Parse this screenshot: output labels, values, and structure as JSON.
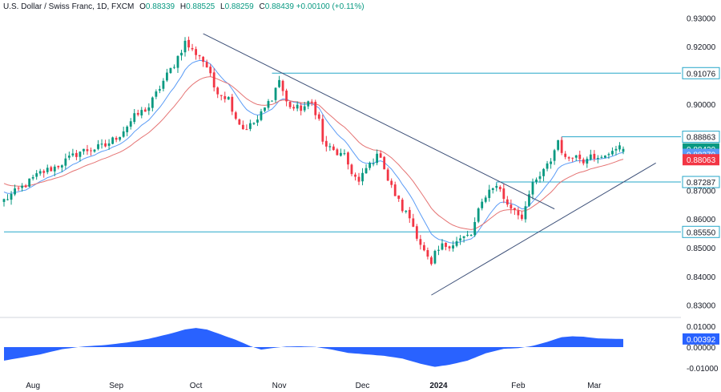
{
  "header": {
    "symbol": "U.S. Dollar / Swiss Franc, 1D, FXCM",
    "open_label": "O",
    "open": "0.88339",
    "high_label": "H",
    "high": "0.88525",
    "low_label": "L",
    "low": "0.88259",
    "close_label": "C",
    "close": "0.88439",
    "change": "+0.00100 (+0.11%)"
  },
  "colors": {
    "up": "#089981",
    "down": "#f23645",
    "ema_fast": "#5b9cf6",
    "ema_slow": "#e57373",
    "level": "#26a7c9",
    "trend": "#3e5179",
    "histogram": "#2962ff",
    "axis_text": "#131722"
  },
  "chart_data": [
    {
      "type": "candlestick",
      "ylim": [
        0.826,
        0.934
      ],
      "y_ticks": [
        "0.93000",
        "0.92000",
        "0.91076",
        "0.90000",
        "0.88863",
        "0.87287",
        "0.87000",
        "0.86000",
        "0.85550",
        "0.85000",
        "0.84000",
        "0.83000"
      ],
      "x_ticks": [
        "Aug",
        "Sep",
        "Oct",
        "Nov",
        "Dec",
        "2024",
        "Feb",
        "Mar"
      ],
      "x_tick_index": [
        8,
        31,
        53,
        76,
        99,
        120,
        142,
        163
      ],
      "anchors": [
        [
          0,
          0.8665
        ],
        [
          6,
          0.872
        ],
        [
          10,
          0.876
        ],
        [
          14,
          0.878
        ],
        [
          18,
          0.881
        ],
        [
          21,
          0.8835
        ],
        [
          25,
          0.8845
        ],
        [
          28,
          0.8855
        ],
        [
          32,
          0.8895
        ],
        [
          36,
          0.8955
        ],
        [
          40,
          0.899
        ],
        [
          44,
          0.908
        ],
        [
          47,
          0.914
        ],
        [
          50,
          0.9215
        ],
        [
          52,
          0.9185
        ],
        [
          54,
          0.917
        ],
        [
          56,
          0.913
        ],
        [
          58,
          0.906
        ],
        [
          60,
          0.9035
        ],
        [
          62,
          0.902
        ],
        [
          64,
          0.8955
        ],
        [
          66,
          0.8915
        ],
        [
          68,
          0.8925
        ],
        [
          70,
          0.8945
        ],
        [
          72,
          0.8985
        ],
        [
          74,
          0.9025
        ],
        [
          76,
          0.9085
        ],
        [
          78,
          0.9005
        ],
        [
          80,
          0.8985
        ],
        [
          82,
          0.8985
        ],
        [
          85,
          0.9005
        ],
        [
          87,
          0.8945
        ],
        [
          88,
          0.8865
        ],
        [
          91,
          0.8835
        ],
        [
          94,
          0.8815
        ],
        [
          96,
          0.8765
        ],
        [
          98,
          0.8725
        ],
        [
          100,
          0.8775
        ],
        [
          102,
          0.8805
        ],
        [
          104,
          0.8825
        ],
        [
          106,
          0.8735
        ],
        [
          108,
          0.8685
        ],
        [
          110,
          0.8635
        ],
        [
          112,
          0.8605
        ],
        [
          114,
          0.8545
        ],
        [
          116,
          0.8485
        ],
        [
          118,
          0.8435
        ],
        [
          119,
          0.8475
        ],
        [
          121,
          0.8505
        ],
        [
          124,
          0.8515
        ],
        [
          127,
          0.8535
        ],
        [
          129,
          0.8545
        ],
        [
          131,
          0.8625
        ],
        [
          133,
          0.8685
        ],
        [
          135,
          0.8715
        ],
        [
          137,
          0.8705
        ],
        [
          139,
          0.8645
        ],
        [
          141,
          0.8635
        ],
        [
          143,
          0.8605
        ],
        [
          144,
          0.8655
        ],
        [
          146,
          0.8715
        ],
        [
          149,
          0.8765
        ],
        [
          151,
          0.8805
        ],
        [
          153,
          0.8875
        ],
        [
          155,
          0.8805
        ],
        [
          157,
          0.8825
        ],
        [
          160,
          0.8805
        ],
        [
          162,
          0.8835
        ],
        [
          164,
          0.8805
        ],
        [
          166,
          0.8815
        ],
        [
          168,
          0.8845
        ],
        [
          171,
          0.8844
        ]
      ],
      "candles": {
        "count": 172,
        "noise": 0.0014,
        "last": {
          "open": 0.88339,
          "high": 0.88525,
          "low": 0.88259,
          "close": 0.88439
        }
      },
      "moving_averages": [
        {
          "kind": "ema",
          "period": 10,
          "color": "#5b9cf6"
        },
        {
          "kind": "ema",
          "period": 21,
          "color": "#e57373"
        }
      ],
      "levels": [
        {
          "label": "0.91076",
          "value": 0.91076,
          "from": 74
        },
        {
          "label": "0.88863",
          "value": 0.88863,
          "from": 154
        },
        {
          "label": "0.87287",
          "value": 0.87287,
          "from": 136
        },
        {
          "label": "0.85550",
          "value": 0.8555,
          "from": 0
        }
      ],
      "price_tags": [
        {
          "label": "0.88439",
          "value": 0.88439,
          "color": "#089981"
        },
        {
          "label": "0.88279",
          "value": 0.88279,
          "color": "#5b9cf6"
        },
        {
          "label": "0.88063",
          "value": 0.88063,
          "color": "#f23645"
        }
      ],
      "trendlines": [
        {
          "x1": 55,
          "y1": 0.9245,
          "x2": 152,
          "y2": 0.8635
        },
        {
          "x1": 118,
          "y1": 0.8335,
          "x2": 180,
          "y2": 0.8795
        }
      ]
    },
    {
      "type": "area",
      "name": "oscillator",
      "ylim": [
        -0.0135,
        0.0135
      ],
      "y_ticks": [
        "0.01000",
        "0.00000",
        "-0.01000"
      ],
      "y_tick_values": [
        0.01,
        0.0,
        -0.01
      ],
      "last_label": "0.00392",
      "last_value": 0.00392,
      "anchors": [
        [
          0,
          -0.0065
        ],
        [
          5,
          -0.005
        ],
        [
          10,
          -0.0035
        ],
        [
          16,
          -0.001
        ],
        [
          22,
          0.0003
        ],
        [
          28,
          0.001
        ],
        [
          34,
          0.0022
        ],
        [
          40,
          0.004
        ],
        [
          46,
          0.0065
        ],
        [
          50,
          0.0085
        ],
        [
          53,
          0.0092
        ],
        [
          56,
          0.0085
        ],
        [
          60,
          0.006
        ],
        [
          64,
          0.0035
        ],
        [
          68,
          0.0005
        ],
        [
          71,
          -0.0012
        ],
        [
          74,
          -0.0005
        ],
        [
          78,
          0.0003
        ],
        [
          82,
          0.0004
        ],
        [
          86,
          0.0001
        ],
        [
          90,
          -0.001
        ],
        [
          95,
          -0.0028
        ],
        [
          100,
          -0.0035
        ],
        [
          105,
          -0.0042
        ],
        [
          110,
          -0.0055
        ],
        [
          115,
          -0.008
        ],
        [
          119,
          -0.0095
        ],
        [
          123,
          -0.0085
        ],
        [
          128,
          -0.0065
        ],
        [
          133,
          -0.003
        ],
        [
          138,
          -0.0008
        ],
        [
          142,
          -0.0005
        ],
        [
          146,
          0.0006
        ],
        [
          150,
          0.0025
        ],
        [
          154,
          0.0048
        ],
        [
          157,
          0.0052
        ],
        [
          160,
          0.005
        ],
        [
          164,
          0.0042
        ],
        [
          168,
          0.004
        ],
        [
          171,
          0.0039
        ]
      ]
    }
  ]
}
